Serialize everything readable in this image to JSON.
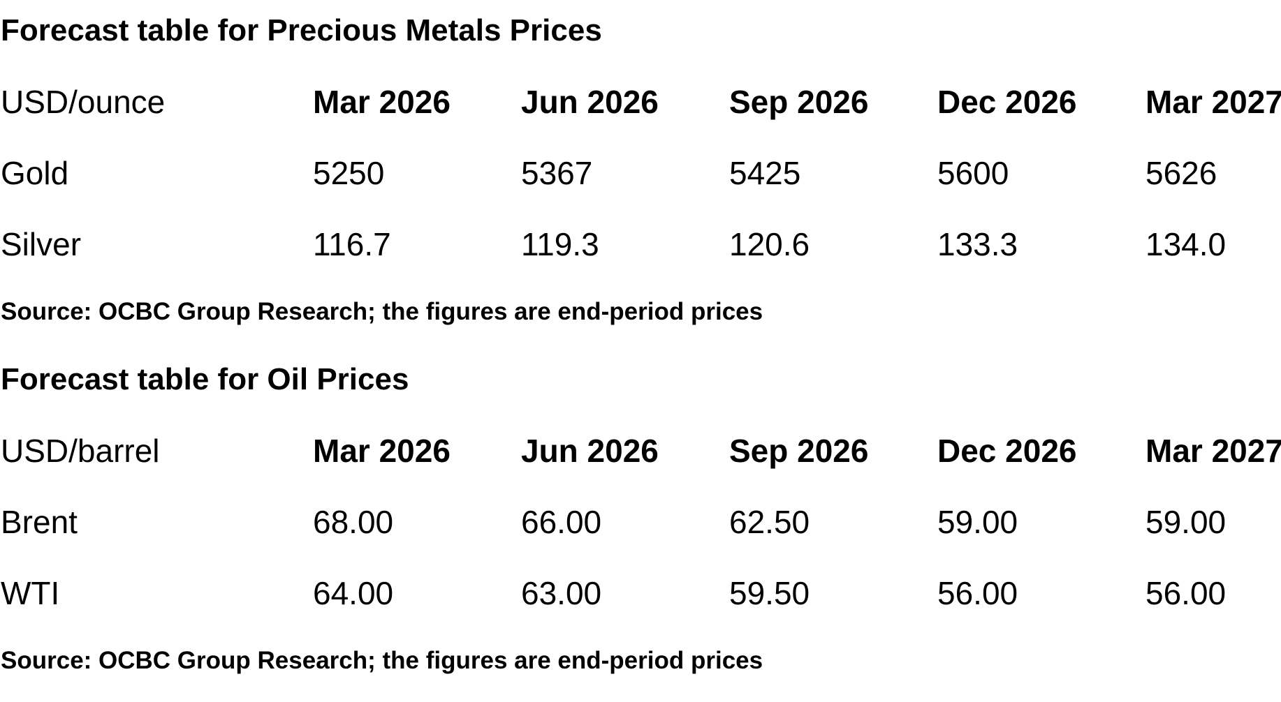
{
  "tables": [
    {
      "title": "Forecast table for Precious Metals Prices",
      "unit": "USD/ounce",
      "columns": [
        "Mar 2026",
        "Jun 2026",
        "Sep 2026",
        "Dec 2026",
        "Mar 2027"
      ],
      "rows": [
        {
          "label": "Gold",
          "values": [
            "5250",
            "5367",
            "5425",
            "5600",
            "5626"
          ]
        },
        {
          "label": "Silver",
          "values": [
            "116.7",
            "119.3",
            "120.6",
            "133.3",
            "134.0"
          ]
        }
      ],
      "source": "Source: OCBC Group Research; the figures are end-period prices"
    },
    {
      "title": "Forecast table for Oil Prices",
      "unit": "USD/barrel",
      "columns": [
        "Mar 2026",
        "Jun 2026",
        "Sep 2026",
        "Dec 2026",
        "Mar 2027"
      ],
      "rows": [
        {
          "label": "Brent",
          "values": [
            "68.00",
            "66.00",
            "62.50",
            "59.00",
            "59.00"
          ]
        },
        {
          "label": "WTI",
          "values": [
            "64.00",
            "63.00",
            "59.50",
            "56.00",
            "56.00"
          ]
        }
      ],
      "source": "Source: OCBC Group Research; the figures are end-period prices"
    }
  ]
}
